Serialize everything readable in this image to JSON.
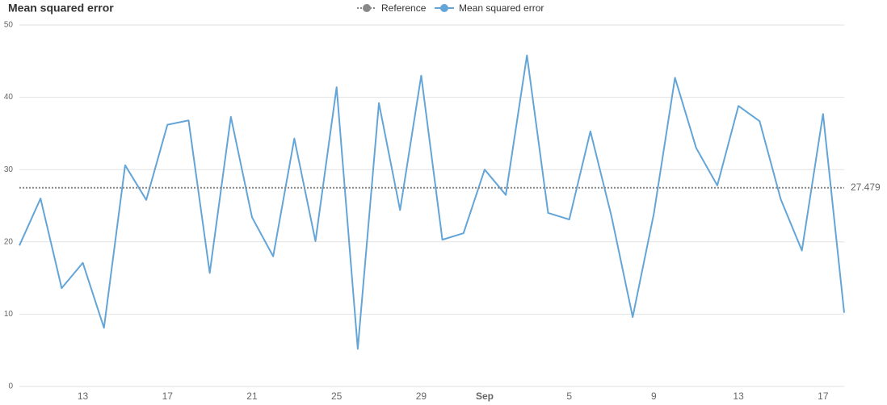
{
  "chart_data": {
    "type": "line",
    "title": "Mean squared error",
    "categories": [
      null,
      null,
      null,
      "13",
      null,
      null,
      null,
      "17",
      null,
      null,
      null,
      "21",
      null,
      null,
      null,
      "25",
      null,
      null,
      null,
      "29",
      null,
      null,
      "Sep",
      null,
      null,
      null,
      "5",
      null,
      null,
      null,
      "9",
      null,
      null,
      null,
      "13",
      null,
      null,
      null,
      "17",
      null
    ],
    "series": [
      {
        "name": "Mean squared error",
        "color": "#64a5d8",
        "values": [
          19.5,
          26.0,
          13.6,
          17.1,
          8.1,
          30.6,
          25.8,
          36.2,
          36.8,
          15.7,
          37.3,
          23.4,
          18.0,
          34.3,
          20.1,
          41.4,
          5.2,
          39.2,
          24.4,
          43.0,
          20.3,
          21.2,
          30.0,
          26.5,
          45.8,
          24.0,
          23.1,
          35.3,
          23.5,
          9.6,
          23.9,
          42.7,
          33.0,
          27.8,
          38.8,
          36.7,
          25.9,
          18.8,
          37.7,
          10.2
        ]
      }
    ],
    "reference": {
      "name": "Reference",
      "color": "#888888",
      "value": 27.479
    },
    "ylim": [
      0,
      50
    ],
    "yticks": [
      0,
      10,
      20,
      30,
      40,
      50
    ],
    "grid": true
  }
}
